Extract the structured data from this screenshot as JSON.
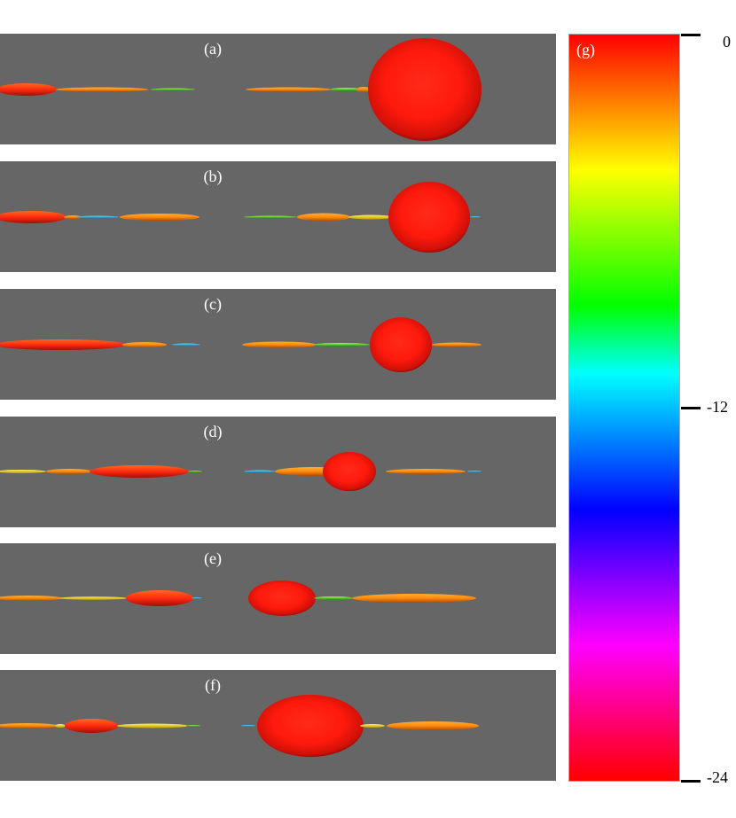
{
  "panels": [
    {
      "label": "(a)"
    },
    {
      "label": "(b)"
    },
    {
      "label": "(c)"
    },
    {
      "label": "(d)"
    },
    {
      "label": "(e)"
    },
    {
      "label": "(f)"
    }
  ],
  "colorbar": {
    "label": "(g)",
    "ticks": [
      "0",
      "-12",
      "-24"
    ],
    "colors": [
      "#ff0000",
      "#ff8000",
      "#ffff00",
      "#80ff00",
      "#00ff00",
      "#00ffff",
      "#0080ff",
      "#0000ff",
      "#8000ff",
      "#ff00ff",
      "#ff0080",
      "#ff0000"
    ]
  },
  "colors": {
    "panel_background": "#666666",
    "droplet": "#ff1a10"
  }
}
